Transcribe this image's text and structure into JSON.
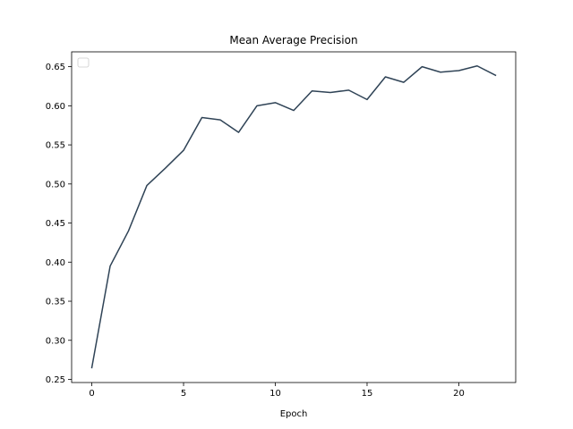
{
  "chart_data": {
    "type": "line",
    "title": "Mean Average Precision",
    "xlabel": "Epoch",
    "ylabel": "",
    "xlim": [
      -1.1,
      23.1
    ],
    "ylim": [
      0.246,
      0.669
    ],
    "x_ticks": [
      0,
      5,
      10,
      15,
      20
    ],
    "y_ticks": [
      0.25,
      0.3,
      0.35,
      0.4,
      0.45,
      0.5,
      0.55,
      0.6,
      0.65
    ],
    "grid": false,
    "legend": {
      "placement": "upper-left",
      "entries": []
    },
    "series": [
      {
        "color": "#2f4356",
        "x": [
          0,
          1,
          2,
          3,
          4,
          5,
          6,
          7,
          8,
          9,
          10,
          11,
          12,
          13,
          14,
          15,
          16,
          17,
          18,
          19,
          20,
          21,
          22
        ],
        "values": [
          0.265,
          0.395,
          0.44,
          0.498,
          0.52,
          0.543,
          0.585,
          0.582,
          0.566,
          0.6,
          0.604,
          0.594,
          0.619,
          0.617,
          0.62,
          0.608,
          0.637,
          0.63,
          0.65,
          0.643,
          0.645,
          0.651,
          0.639
        ]
      }
    ]
  }
}
